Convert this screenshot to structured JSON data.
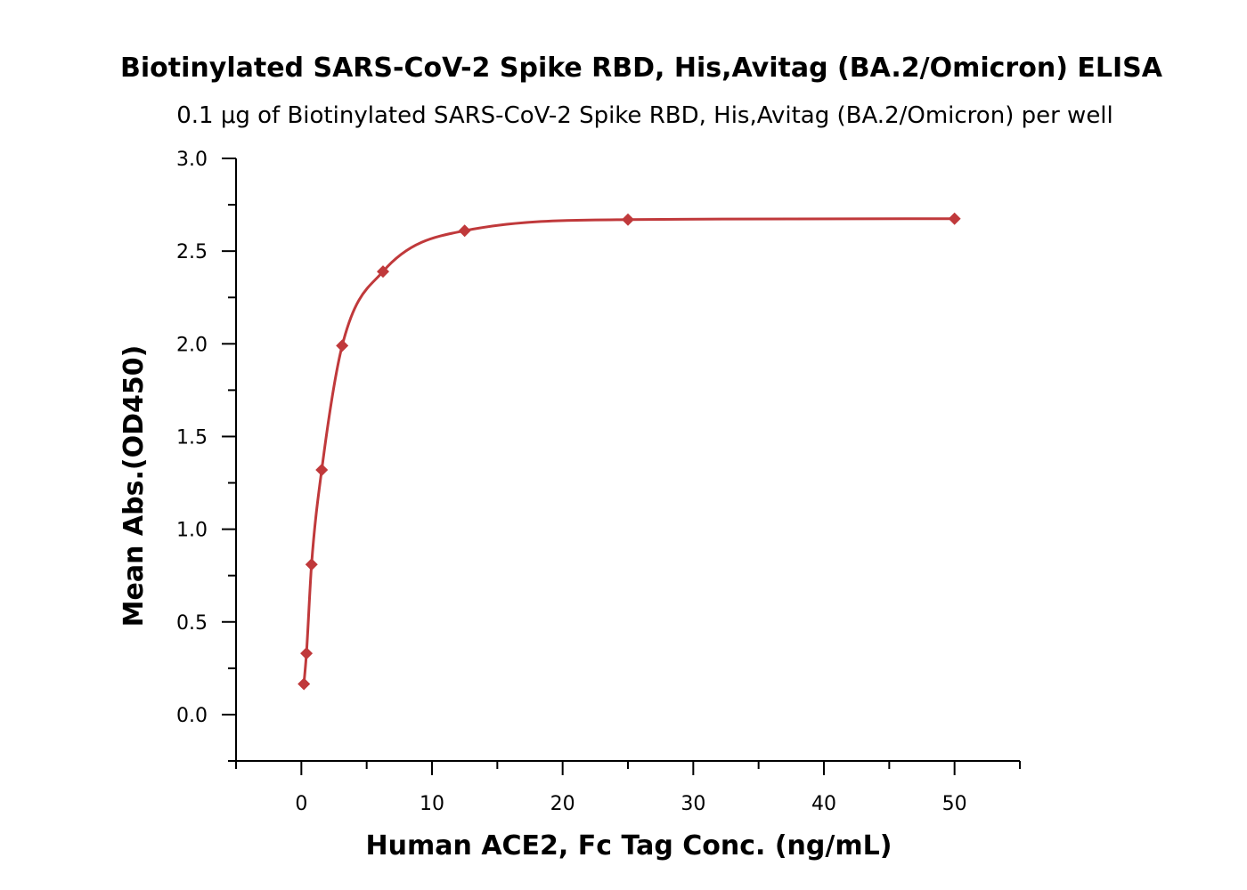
{
  "chart_data": {
    "type": "scatter",
    "title": "Biotinylated SARS-CoV-2 Spike RBD, His,Avitag (BA.2/Omicron)  ELISA",
    "subtitle": "0.1 μg of Biotinylated SARS-CoV-2 Spike RBD, His,Avitag (BA.2/Omicron)  per well",
    "xlabel": "Human ACE2, Fc Tag Conc. (ng/mL)",
    "ylabel": "Mean Abs.(OD450)",
    "xlim": [
      -5,
      55
    ],
    "ylim": [
      -0.25,
      3.0
    ],
    "x_ticks": [
      0,
      10,
      20,
      30,
      40,
      50
    ],
    "x_tick_labels": [
      "0",
      "10",
      "20",
      "30",
      "40",
      "50"
    ],
    "y_ticks": [
      0.0,
      0.5,
      1.0,
      1.5,
      2.0,
      2.5,
      3.0
    ],
    "y_tick_labels": [
      "0.0",
      "0.5",
      "1.0",
      "1.5",
      "2.0",
      "2.5",
      "3.0"
    ],
    "grid": false,
    "marker": "diamond",
    "series": [
      {
        "color": "#c0393b",
        "x": [
          0.195,
          0.39,
          0.78,
          1.56,
          3.125,
          6.25,
          12.5,
          25,
          50
        ],
        "y": [
          0.165,
          0.33,
          0.81,
          1.32,
          1.99,
          2.39,
          2.61,
          2.67,
          2.675
        ]
      }
    ]
  }
}
